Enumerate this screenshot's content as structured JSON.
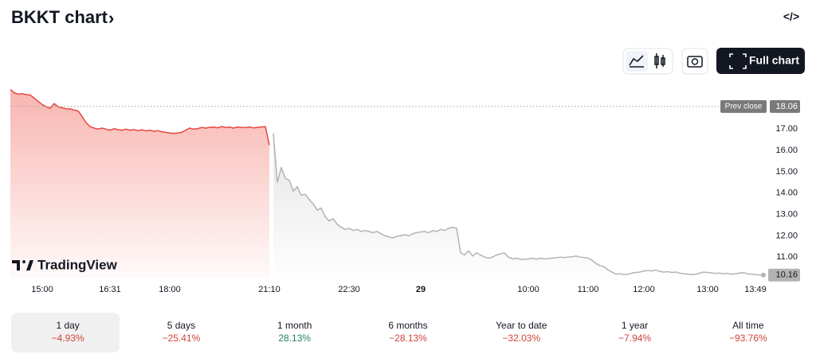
{
  "header": {
    "title": "BKKT chart",
    "title_arrow": "›",
    "embed_icon": "</>",
    "full_chart_button": "Full chart"
  },
  "watermark": "TradingView",
  "chart_data": {
    "type": "line",
    "categories": [
      null,
      null,
      null,
      null,
      null,
      null,
      null,
      null,
      "15:00",
      null,
      null,
      null,
      null,
      null,
      null,
      null,
      null,
      null,
      null,
      null,
      null,
      null,
      null,
      null,
      null,
      "16:31",
      null,
      null,
      null,
      null,
      null,
      null,
      null,
      null,
      null,
      null,
      null,
      null,
      null,
      null,
      "18:00",
      null,
      null,
      null,
      null,
      null,
      null,
      null,
      null,
      null,
      null,
      null,
      null,
      null,
      null,
      null,
      null,
      null,
      null,
      null,
      null,
      null,
      null,
      null,
      null,
      "21:10",
      null,
      null,
      null,
      null,
      null,
      null,
      null,
      null,
      null,
      null,
      null,
      null,
      null,
      null,
      null,
      null,
      null,
      null,
      null,
      "22:30",
      null,
      null,
      null,
      null,
      null,
      null,
      null,
      null,
      null,
      null,
      null,
      null,
      null,
      null,
      null,
      null,
      null,
      "29",
      null,
      null,
      null,
      null,
      null,
      null,
      null,
      null,
      null,
      null,
      null,
      null,
      null,
      null,
      null,
      null,
      null,
      null,
      null,
      null,
      null,
      null,
      null,
      null,
      null,
      null,
      "10:00",
      null,
      null,
      null,
      null,
      null,
      null,
      null,
      null,
      null,
      null,
      null,
      null,
      null,
      null,
      "11:00",
      null,
      null,
      null,
      null,
      null,
      null,
      null,
      null,
      null,
      null,
      null,
      null,
      null,
      "12:00",
      null,
      null,
      null,
      null,
      null,
      null,
      null,
      null,
      null,
      null,
      null,
      null,
      null,
      null,
      null,
      "13:00",
      null,
      null,
      null,
      null,
      null,
      null,
      null,
      null,
      null,
      null,
      null,
      "13:49",
      null,
      null
    ],
    "series": [
      {
        "color": "#e5483f",
        "values": [
          18.86,
          18.7,
          18.64,
          18.66,
          18.62,
          18.6,
          18.45,
          18.3,
          18.15,
          18.05,
          17.98,
          18.2,
          18.05,
          18.0,
          17.95,
          17.95,
          17.9,
          17.85,
          17.6,
          17.3,
          17.12,
          17.05,
          17.0,
          17.05,
          17.0,
          16.95,
          17.02,
          16.98,
          16.95,
          17.0,
          16.95,
          16.98,
          16.93,
          16.97,
          16.92,
          16.95,
          16.9,
          16.93,
          16.88,
          16.85,
          16.82,
          16.8,
          16.82,
          16.85,
          16.95,
          17.05,
          17.0,
          17.02,
          17.08,
          17.05,
          17.08,
          17.1,
          17.06,
          17.12,
          17.08,
          17.1,
          17.05,
          17.1,
          17.08,
          17.07,
          17.1,
          17.06,
          17.08,
          17.1,
          17.12,
          16.25,
          null,
          null,
          null,
          null,
          null,
          null,
          null,
          null,
          null,
          null,
          null,
          null,
          null,
          null,
          null,
          null,
          null,
          null,
          null,
          null,
          null,
          null,
          null,
          null,
          null,
          null,
          null,
          null,
          null,
          null,
          null,
          null,
          null,
          null,
          null,
          null,
          null,
          null,
          null,
          null,
          null,
          null,
          null,
          null,
          null,
          null,
          null,
          null,
          null,
          null,
          null,
          null,
          null,
          null,
          null,
          null,
          null,
          null,
          null,
          null,
          null,
          null,
          null,
          null,
          null,
          null,
          null,
          null,
          null,
          null,
          null,
          null,
          null,
          null,
          null,
          null,
          null,
          null,
          null,
          null,
          null,
          null,
          null,
          null,
          null,
          null,
          null,
          null,
          null,
          null,
          null,
          null,
          null,
          null,
          null,
          null,
          null,
          null,
          null,
          null,
          null,
          null,
          null,
          null,
          null,
          null,
          null,
          null,
          null,
          null,
          null,
          null,
          null,
          null,
          null,
          null,
          null,
          null,
          null,
          null,
          null,
          null,
          null,
          null
        ]
      },
      {
        "color": "#b3b3b3",
        "values": [
          null,
          null,
          null,
          null,
          null,
          null,
          null,
          null,
          null,
          null,
          null,
          null,
          null,
          null,
          null,
          null,
          null,
          null,
          null,
          null,
          null,
          null,
          null,
          null,
          null,
          null,
          null,
          null,
          null,
          null,
          null,
          null,
          null,
          null,
          null,
          null,
          null,
          null,
          null,
          null,
          null,
          null,
          null,
          null,
          null,
          null,
          null,
          null,
          null,
          null,
          null,
          null,
          null,
          null,
          null,
          null,
          null,
          null,
          null,
          null,
          null,
          null,
          null,
          null,
          null,
          null,
          16.8,
          14.5,
          15.2,
          14.7,
          14.6,
          14.1,
          14.3,
          13.9,
          13.95,
          13.7,
          13.5,
          13.2,
          13.3,
          12.9,
          12.7,
          12.8,
          12.55,
          12.4,
          12.3,
          12.35,
          12.25,
          12.3,
          12.2,
          12.25,
          12.2,
          12.15,
          12.2,
          12.1,
          12.0,
          11.95,
          11.9,
          11.98,
          12.0,
          12.05,
          12.0,
          12.1,
          12.15,
          12.18,
          12.2,
          12.15,
          12.25,
          12.2,
          12.3,
          12.25,
          12.35,
          12.4,
          12.35,
          11.2,
          11.1,
          11.3,
          11.05,
          11.2,
          11.1,
          11.0,
          10.95,
          11.0,
          11.1,
          11.15,
          11.2,
          11.0,
          10.92,
          10.95,
          10.9,
          10.9,
          10.92,
          10.95,
          10.9,
          10.95,
          10.92,
          10.93,
          10.95,
          10.97,
          11.0,
          10.98,
          11.0,
          11.02,
          11.05,
          11.0,
          10.98,
          10.95,
          10.85,
          10.7,
          10.6,
          10.55,
          10.4,
          10.3,
          10.2,
          10.22,
          10.18,
          10.2,
          10.25,
          10.28,
          10.3,
          10.35,
          10.38,
          10.35,
          10.4,
          10.33,
          10.3,
          10.32,
          10.28,
          10.3,
          10.25,
          10.22,
          10.2,
          10.18,
          10.2,
          10.25,
          10.3,
          10.28,
          10.26,
          10.24,
          10.25,
          10.22,
          10.24,
          10.2,
          10.22,
          10.25,
          10.27,
          10.22,
          10.2,
          10.18,
          10.17,
          10.16
        ]
      }
    ],
    "ylim": [
      10,
      19.1
    ],
    "yticks": [
      {
        "value": 11,
        "label": "11.00"
      },
      {
        "value": 12,
        "label": "12.00"
      },
      {
        "value": 13,
        "label": "13.00"
      },
      {
        "value": 14,
        "label": "14.00"
      },
      {
        "value": 15,
        "label": "15.00"
      },
      {
        "value": 16,
        "label": "16.00"
      },
      {
        "value": 17,
        "label": "17.00"
      }
    ],
    "prev_close": {
      "label": "Prev close",
      "value": 18.06
    },
    "last_price": 10.16
  },
  "periods": [
    {
      "label": "1 day",
      "change": "−4.93%"
    },
    {
      "label": "5 days",
      "change": "−25.41%"
    },
    {
      "label": "1 month",
      "change": "28.13%"
    },
    {
      "label": "6 months",
      "change": "−28.13%"
    },
    {
      "label": "Year to date",
      "change": "−32.03%"
    },
    {
      "label": "1 year",
      "change": "−7.94%"
    },
    {
      "label": "All time",
      "change": "−93.76%"
    }
  ]
}
